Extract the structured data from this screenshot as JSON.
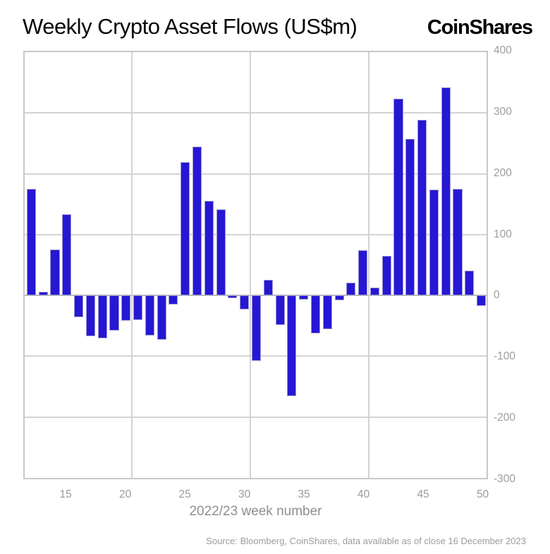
{
  "header": {
    "title": "Weekly Crypto Asset Flows (US$m)",
    "logo": "CoinShares"
  },
  "chart_data": {
    "type": "bar",
    "title": "Weekly Crypto Asset Flows (US$m)",
    "xlabel": "2022/23 week number",
    "ylabel": "",
    "bar_color": "#2617d4",
    "grid": true,
    "ylim": [
      -300,
      400
    ],
    "x_domain": [
      11.44,
      50.44
    ],
    "y_gridlines": [
      300,
      200,
      100,
      0,
      -100,
      -200
    ],
    "x_gridlines": [
      20.5,
      30.5,
      40.5
    ],
    "y_tick_labels": [
      "400",
      "300",
      "200",
      "100",
      "0",
      "-100",
      "-200",
      "-300"
    ],
    "y_tick_values": [
      400,
      300,
      200,
      100,
      0,
      -100,
      -200,
      -300
    ],
    "x_tick_values": [
      15,
      20,
      25,
      30,
      35,
      40,
      45,
      50
    ],
    "x": [
      12,
      13,
      14,
      15,
      16,
      17,
      18,
      19,
      20,
      21,
      22,
      23,
      24,
      25,
      26,
      27,
      28,
      29,
      30,
      31,
      32,
      33,
      34,
      35,
      36,
      37,
      38,
      39,
      40,
      41,
      42,
      43,
      44,
      45,
      46,
      47,
      48,
      49,
      50
    ],
    "values": [
      175,
      6,
      75,
      134,
      -36,
      -67,
      -71,
      -58,
      -42,
      -40,
      -66,
      -73,
      -15,
      219,
      245,
      156,
      142,
      -4,
      -23,
      -108,
      26,
      -49,
      -165,
      -7,
      -62,
      -56,
      -8,
      21,
      74,
      13,
      65,
      323,
      258,
      289,
      174,
      342,
      175,
      41,
      -17
    ]
  },
  "footer": {
    "source": "Source: Bloomberg, CoinShares, data available as of close 16 December 2023"
  }
}
